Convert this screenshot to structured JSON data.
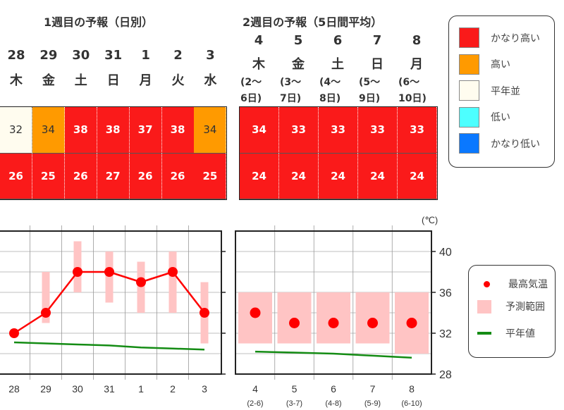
{
  "week1": {
    "title": "1週目の予報（日別）",
    "days": [
      {
        "date": "28",
        "weekday": "木",
        "max": "32",
        "min": "26",
        "max_class": "normal",
        "min_class": "very-high"
      },
      {
        "date": "29",
        "weekday": "金",
        "max": "34",
        "min": "25",
        "max_class": "high",
        "min_class": "very-high"
      },
      {
        "date": "30",
        "weekday": "土",
        "max": "38",
        "min": "26",
        "max_class": "very-high",
        "min_class": "very-high"
      },
      {
        "date": "31",
        "weekday": "日",
        "max": "38",
        "min": "27",
        "max_class": "very-high",
        "min_class": "very-high"
      },
      {
        "date": "1",
        "weekday": "月",
        "max": "37",
        "min": "26",
        "max_class": "very-high",
        "min_class": "very-high"
      },
      {
        "date": "2",
        "weekday": "火",
        "max": "38",
        "min": "26",
        "max_class": "very-high",
        "min_class": "very-high"
      },
      {
        "date": "3",
        "weekday": "水",
        "max": "34",
        "min": "25",
        "max_class": "high",
        "min_class": "very-high"
      }
    ]
  },
  "week2": {
    "title": "2週目の予報（5日間平均）",
    "days": [
      {
        "date": "4",
        "weekday": "木",
        "range_start": "(2～",
        "range_end": "6日)",
        "max": "34",
        "min": "24",
        "max_class": "very-high",
        "min_class": "very-high"
      },
      {
        "date": "5",
        "weekday": "金",
        "range_start": "(3～",
        "range_end": "7日)",
        "max": "33",
        "min": "24",
        "max_class": "very-high",
        "min_class": "very-high"
      },
      {
        "date": "6",
        "weekday": "土",
        "range_start": "(4～",
        "range_end": "8日)",
        "max": "33",
        "min": "24",
        "max_class": "very-high",
        "min_class": "very-high"
      },
      {
        "date": "7",
        "weekday": "日",
        "range_start": "(5～",
        "range_end": "9日)",
        "max": "33",
        "min": "24",
        "max_class": "very-high",
        "min_class": "very-high"
      },
      {
        "date": "8",
        "weekday": "月",
        "range_start": "(6～",
        "range_end": "10日)",
        "max": "33",
        "min": "24",
        "max_class": "very-high",
        "min_class": "very-high"
      }
    ]
  },
  "class_legend": {
    "items": [
      {
        "key": "very-high",
        "label": "かなり高い",
        "color": "#fa1a1a"
      },
      {
        "key": "high",
        "label": "高い",
        "color": "#ff9a00"
      },
      {
        "key": "normal",
        "label": "平年並",
        "color": "#fffcef"
      },
      {
        "key": "low",
        "label": "低い",
        "color": "#4dffff"
      },
      {
        "key": "very-low",
        "label": "かなり低い",
        "color": "#0a78ff"
      }
    ]
  },
  "chart_data": {
    "type": "line",
    "unit_label": "(℃)",
    "ylim": [
      28,
      42
    ],
    "yticks": [
      "28",
      "32",
      "36",
      "40"
    ],
    "grid": true,
    "legend_position": "right",
    "legend": {
      "max_temp": "最高気温",
      "forecast_range": "予測範囲",
      "normal": "平年値"
    },
    "colors": {
      "max_temp": "#ff0000",
      "forecast_range": "#ffc4c4",
      "normal": "#148c14"
    },
    "panels": [
      {
        "categories": [
          "28",
          "29",
          "30",
          "31",
          "1",
          "2",
          "3"
        ],
        "max_temp": [
          32,
          34,
          38,
          38,
          37,
          38,
          34
        ],
        "range_low": [
          null,
          33,
          36,
          35,
          34,
          34,
          31
        ],
        "range_high": [
          null,
          38,
          41,
          40,
          39,
          40,
          37
        ],
        "normal": [
          31.1,
          31.0,
          30.9,
          30.8,
          30.6,
          30.5,
          30.4
        ],
        "connected": true
      },
      {
        "categories": [
          "4",
          "5",
          "6",
          "7",
          "8"
        ],
        "sublabels": [
          "(2-6)",
          "(3-7)",
          "(4-8)",
          "(5-9)",
          "(6-10)"
        ],
        "max_temp": [
          34,
          33,
          33,
          33,
          33
        ],
        "range_low": [
          31,
          31,
          31,
          31,
          30
        ],
        "range_high": [
          36,
          36,
          36,
          36,
          36
        ],
        "normal": [
          30.2,
          30.1,
          30.0,
          29.8,
          29.6
        ],
        "connected": false
      }
    ]
  }
}
